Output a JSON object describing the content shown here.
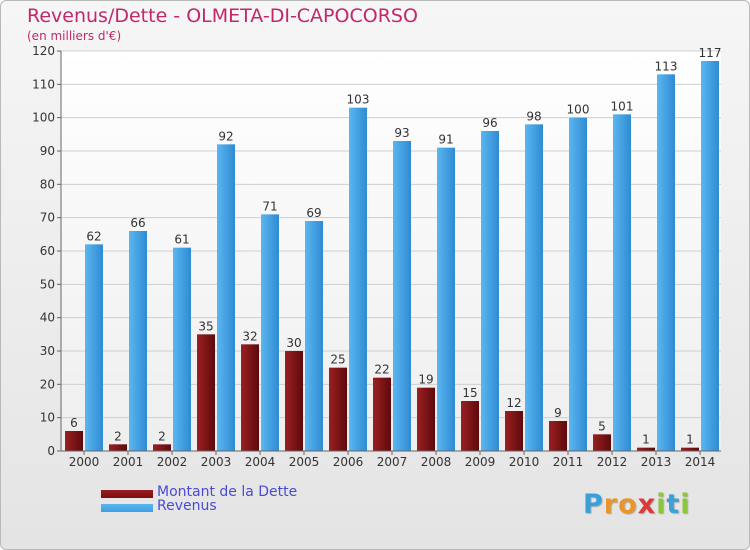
{
  "title": "Revenus/Dette - OLMETA-DI-CAPOCORSO",
  "subtitle": "(en milliers d'€)",
  "colors": {
    "title": "#c1286a",
    "dette": "#7a0e10",
    "revenus": "#3f9ee2",
    "legend_text": "#4a4ad4"
  },
  "chart_data": {
    "type": "bar",
    "title": "Revenus/Dette - OLMETA-DI-CAPOCORSO",
    "ylabel": "(en milliers d'€)",
    "categories": [
      "2000",
      "2001",
      "2002",
      "2003",
      "2004",
      "2005",
      "2006",
      "2007",
      "2008",
      "2009",
      "2010",
      "2011",
      "2012",
      "2013",
      "2014"
    ],
    "series": [
      {
        "name": "Montant de la Dette",
        "values": [
          6,
          2,
          2,
          35,
          32,
          30,
          25,
          22,
          19,
          15,
          12,
          9,
          5,
          1,
          1
        ]
      },
      {
        "name": "Revenus",
        "values": [
          62,
          66,
          61,
          92,
          71,
          69,
          103,
          93,
          91,
          96,
          98,
          100,
          101,
          113,
          117
        ]
      }
    ],
    "ylim": [
      0,
      120
    ],
    "yticks": [
      0,
      10,
      20,
      30,
      40,
      50,
      60,
      70,
      80,
      90,
      100,
      110,
      120
    ],
    "grid": true,
    "legend_position": "bottom-left",
    "data_labels": true
  },
  "legend": {
    "dette_label": "Montant de la Dette",
    "revenus_label": "Revenus"
  },
  "logo": {
    "letters": [
      "P",
      "r",
      "o",
      "x",
      "i",
      "t",
      "i"
    ],
    "colors": [
      "#3aa0d8",
      "#e8962a",
      "#e8962a",
      "#d93a3a",
      "#8cc63f",
      "#3aa0d8",
      "#8cc63f"
    ]
  }
}
